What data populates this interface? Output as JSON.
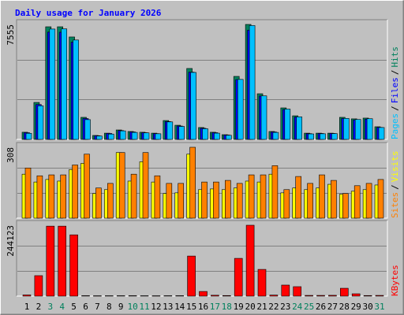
{
  "title": "Daily usage for January 2026",
  "separator": "/",
  "chart_data": [
    {
      "type": "bar",
      "ylim": [
        0,
        7555
      ],
      "yticks": [
        7555
      ],
      "series": [
        {
          "name": "Hits",
          "color": "#00805c",
          "values": [
            470,
            2430,
            7400,
            7400,
            6730,
            1450,
            260,
            410,
            620,
            520,
            470,
            410,
            1240,
            930,
            4660,
            780,
            470,
            310,
            4140,
            7555,
            3000,
            520,
            2070,
            1550,
            410,
            410,
            410,
            1450,
            1350,
            1400,
            830
          ]
        },
        {
          "name": "Files",
          "color": "#0000ff",
          "values": [
            440,
            2290,
            7050,
            7040,
            6390,
            1370,
            240,
            390,
            580,
            490,
            440,
            380,
            1170,
            880,
            4420,
            730,
            440,
            290,
            3930,
            7180,
            2850,
            490,
            1960,
            1470,
            380,
            390,
            390,
            1370,
            1280,
            1330,
            790
          ]
        },
        {
          "name": "Pages",
          "color": "#00c0ff",
          "values": [
            400,
            2210,
            7250,
            7260,
            6530,
            1300,
            220,
            350,
            560,
            460,
            430,
            370,
            1150,
            850,
            4400,
            700,
            410,
            270,
            3940,
            7480,
            2860,
            460,
            1990,
            1480,
            360,
            370,
            380,
            1380,
            1310,
            1360,
            780
          ]
        }
      ]
    },
    {
      "type": "bar",
      "ylim": [
        0,
        308
      ],
      "yticks": [
        308
      ],
      "series": [
        {
          "name": "Visits",
          "color": "#ffff00",
          "values": [
            191,
            157,
            168,
            161,
            211,
            238,
            107,
            124,
            285,
            161,
            245,
            157,
            107,
            110,
            278,
            124,
            127,
            124,
            131,
            161,
            157,
            191,
            110,
            131,
            124,
            131,
            147,
            104,
            117,
            124,
            144
          ]
        },
        {
          "name": "Sites",
          "color": "#ff8000",
          "values": [
            218,
            184,
            188,
            188,
            231,
            278,
            131,
            151,
            285,
            191,
            285,
            184,
            151,
            151,
            308,
            157,
            157,
            164,
            151,
            188,
            188,
            228,
            124,
            181,
            151,
            188,
            164,
            107,
            141,
            151,
            168
          ]
        }
      ]
    },
    {
      "type": "bar",
      "ylim": [
        0,
        244123
      ],
      "yticks": [
        244123
      ],
      "categories": [
        "1",
        "2",
        "3",
        "4",
        "5",
        "6",
        "7",
        "8",
        "9",
        "10",
        "11",
        "12",
        "13",
        "14",
        "15",
        "16",
        "17",
        "18",
        "19",
        "20",
        "21",
        "22",
        "23",
        "24",
        "25",
        "26",
        "27",
        "28",
        "29",
        "30",
        "31"
      ],
      "category_colors": [
        "#000000",
        "#000000",
        "#00805c",
        "#00805c",
        "#000000",
        "#000000",
        "#000000",
        "#000000",
        "#000000",
        "#00805c",
        "#00805c",
        "#000000",
        "#000000",
        "#000000",
        "#000000",
        "#000000",
        "#00805c",
        "#00805c",
        "#000000",
        "#000000",
        "#000000",
        "#000000",
        "#000000",
        "#00805c",
        "#00805c",
        "#000000",
        "#000000",
        "#000000",
        "#000000",
        "#000000",
        "#00805c"
      ],
      "series": [
        {
          "name": "KBytes",
          "color": "#ff0000",
          "values": [
            4000,
            70500,
            241000,
            241000,
            211000,
            1500,
            1200,
            1300,
            1400,
            1500,
            1300,
            1200,
            1400,
            1500,
            138000,
            16000,
            3000,
            2000,
            130000,
            244123,
            92000,
            3500,
            38000,
            32500,
            2500,
            2500,
            2800,
            27000,
            8000,
            2000,
            2500
          ]
        }
      ]
    }
  ]
}
